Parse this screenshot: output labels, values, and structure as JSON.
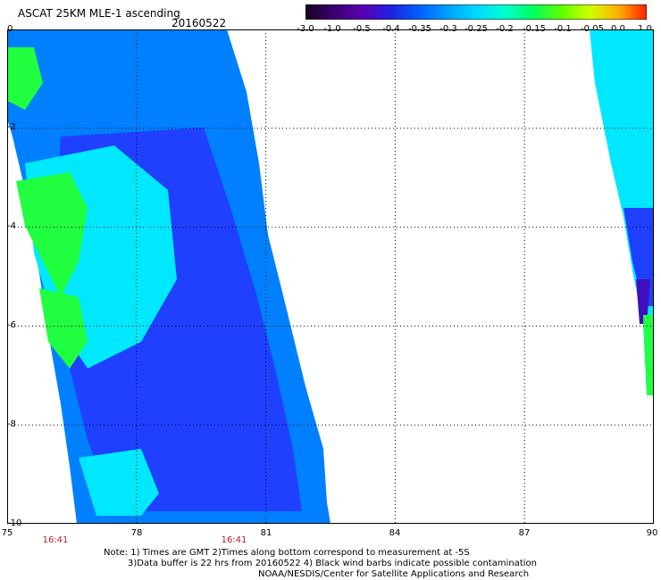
{
  "header": {
    "title": "ASCAT 25KM MLE-1 ascending",
    "date": "20160522"
  },
  "colorbar": {
    "labels": [
      "-3.0",
      "-1.0",
      "-0.5",
      "-0.4",
      "-0.35",
      "-0.3",
      "-0.25",
      "-0.2",
      "-0.15",
      "-0.1",
      "-0.05",
      "0.0",
      "1.0"
    ],
    "colors": [
      "#1a0020",
      "#3a0070",
      "#5a00b0",
      "#2020e0",
      "#0060ff",
      "#00a0ff",
      "#00d8ff",
      "#00ffd0",
      "#00ff60",
      "#60ff00",
      "#d0ff00",
      "#ffb000",
      "#ff2000"
    ]
  },
  "map": {
    "x_ticks": [
      "75",
      "78",
      "81",
      "84",
      "87",
      "90"
    ],
    "y_ticks": [
      "0",
      "-2",
      "-4",
      "-6",
      "-8",
      "-10"
    ],
    "x_range": [
      75,
      90
    ],
    "y_range": [
      -10,
      0
    ],
    "pass_times": [
      "16:41",
      "16:41"
    ],
    "swath_colors": {
      "low": "#2040ff",
      "mid": "#0080ff",
      "high": "#00e8ff",
      "green": "#20ff40",
      "violet": "#4010c0"
    }
  },
  "notes": {
    "line1": "Note: 1) Times are GMT 2)Times along bottom correspond to measurement at -5S",
    "line2": "3)Data buffer is 22 hrs from 20160522 4) Black wind barbs indicate possible contamination",
    "line3": "NOAA/NESDIS/Center for Satellite Applications and Research"
  }
}
